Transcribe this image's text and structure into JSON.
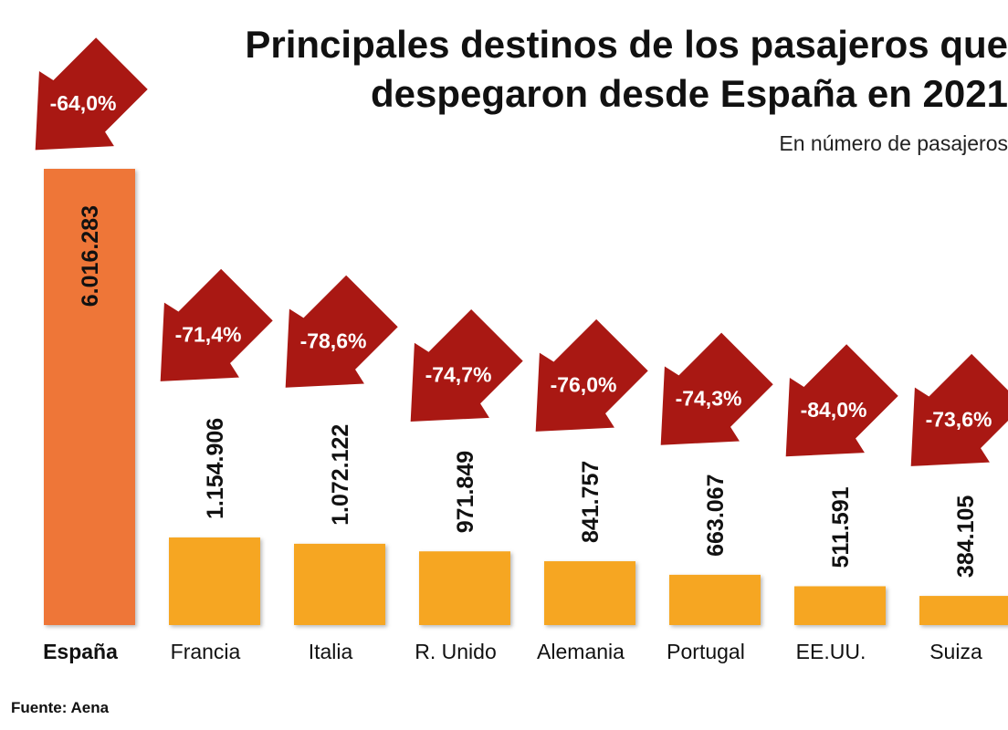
{
  "chart_data": {
    "type": "bar",
    "title_lines": [
      "Principales destinos de los pasajeros que",
      "despegaron desde España en 2021"
    ],
    "subtitle": "En número de pasajeros",
    "source": "Fuente: Aena",
    "categories": [
      "España",
      "Francia",
      "Italia",
      "R. Unido",
      "Alemania",
      "Portugal",
      "EE.UU.",
      "Suiza"
    ],
    "values": [
      6016283,
      1154906,
      1072122,
      971849,
      841757,
      663067,
      511591,
      384105
    ],
    "value_labels": [
      "6.016.283",
      "1.154.906",
      "1.072.122",
      "971.849",
      "841.757",
      "663.067",
      "511.591",
      "384.105"
    ],
    "changes": [
      "-64,0%",
      "-71,4%",
      "-78,6%",
      "-74,7%",
      "-76,0%",
      "-74,3%",
      "-84,0%",
      "-73,6%"
    ],
    "highlight_category": "España",
    "ylim": [
      0,
      6016283
    ],
    "colors": {
      "highlight_bar": "#ee7637",
      "bar": "#f6a623",
      "arrow": "#a91813",
      "arrow_text": "#ffffff"
    }
  }
}
